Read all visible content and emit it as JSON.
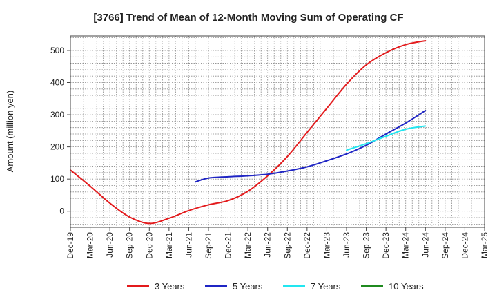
{
  "chart_data": {
    "type": "line",
    "title": "[3766]  Trend of Mean of 12-Month Moving Sum of Operating CF",
    "xlabel": "",
    "ylabel": "Amount (million yen)",
    "ylim": [
      -50,
      545
    ],
    "yticks": [
      0,
      100,
      200,
      300,
      400,
      500
    ],
    "grid": true,
    "legend_position": "bottom",
    "x_tick_labels": [
      "Dec-19",
      "Mar-20",
      "Jun-20",
      "Sep-20",
      "Dec-20",
      "Mar-21",
      "Jun-21",
      "Sep-21",
      "Dec-21",
      "Mar-22",
      "Jun-22",
      "Sep-22",
      "Dec-22",
      "Mar-23",
      "Jun-23",
      "Sep-23",
      "Dec-23",
      "Mar-24",
      "Jun-24",
      "Sep-24",
      "Dec-24",
      "Mar-25"
    ],
    "x_tick_labels_extra": [
      "Mar-25"
    ],
    "series": [
      {
        "name": "3 Years",
        "color": "#e31a1c",
        "points": [
          [
            0,
            128
          ],
          [
            1,
            78
          ],
          [
            2,
            25
          ],
          [
            3,
            -18
          ],
          [
            4,
            -38
          ],
          [
            5,
            -22
          ],
          [
            6,
            2
          ],
          [
            7,
            20
          ],
          [
            8,
            33
          ],
          [
            9,
            62
          ],
          [
            10,
            110
          ],
          [
            11,
            170
          ],
          [
            12,
            245
          ],
          [
            13,
            320
          ],
          [
            14,
            395
          ],
          [
            15,
            455
          ],
          [
            16,
            493
          ],
          [
            17,
            518
          ],
          [
            18,
            530
          ]
        ]
      },
      {
        "name": "5 Years",
        "color": "#1f25c4",
        "points": [
          [
            6.33,
            91
          ],
          [
            7,
            103
          ],
          [
            8,
            107
          ],
          [
            9,
            110
          ],
          [
            10,
            115
          ],
          [
            11,
            125
          ],
          [
            12,
            138
          ],
          [
            13,
            157
          ],
          [
            14,
            178
          ],
          [
            15,
            205
          ],
          [
            16,
            240
          ],
          [
            17,
            274
          ],
          [
            18,
            313
          ]
        ]
      },
      {
        "name": "7 Years",
        "color": "#22e6f0",
        "points": [
          [
            14,
            190
          ],
          [
            15,
            210
          ],
          [
            16,
            233
          ],
          [
            17,
            255
          ],
          [
            18,
            265
          ]
        ]
      },
      {
        "name": "10 Years",
        "color": "#1f8a1f",
        "points": []
      }
    ]
  }
}
